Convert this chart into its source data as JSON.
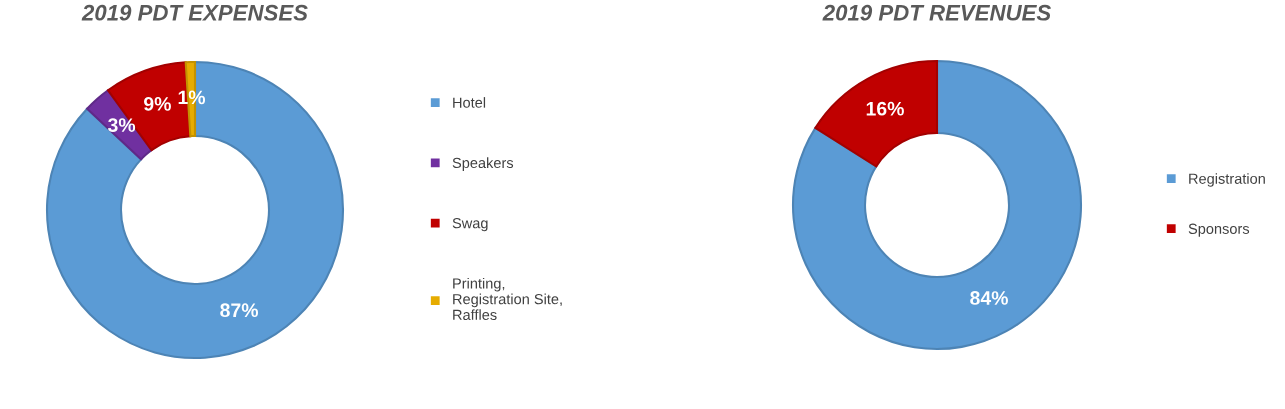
{
  "chart_data": [
    {
      "type": "donut",
      "title": "2019 PDT EXPENSES",
      "categories": [
        "Hotel",
        "Speakers",
        "Swag",
        "Printing,\nRegistration Site,\nRaffles"
      ],
      "values": [
        87,
        3,
        9,
        1
      ],
      "colors": [
        "#5b9bd5",
        "#7030a0",
        "#c00000",
        "#e6ac00"
      ],
      "value_labels": [
        "87%",
        "3%",
        "9%",
        "1%"
      ],
      "legend": "right"
    },
    {
      "type": "donut",
      "title": "2019 PDT REVENUES",
      "categories": [
        "Registration",
        "Sponsors"
      ],
      "values": [
        84,
        16
      ],
      "colors": [
        "#5b9bd5",
        "#c00000"
      ],
      "value_labels": [
        "84%",
        "16%"
      ],
      "legend": "right"
    }
  ]
}
